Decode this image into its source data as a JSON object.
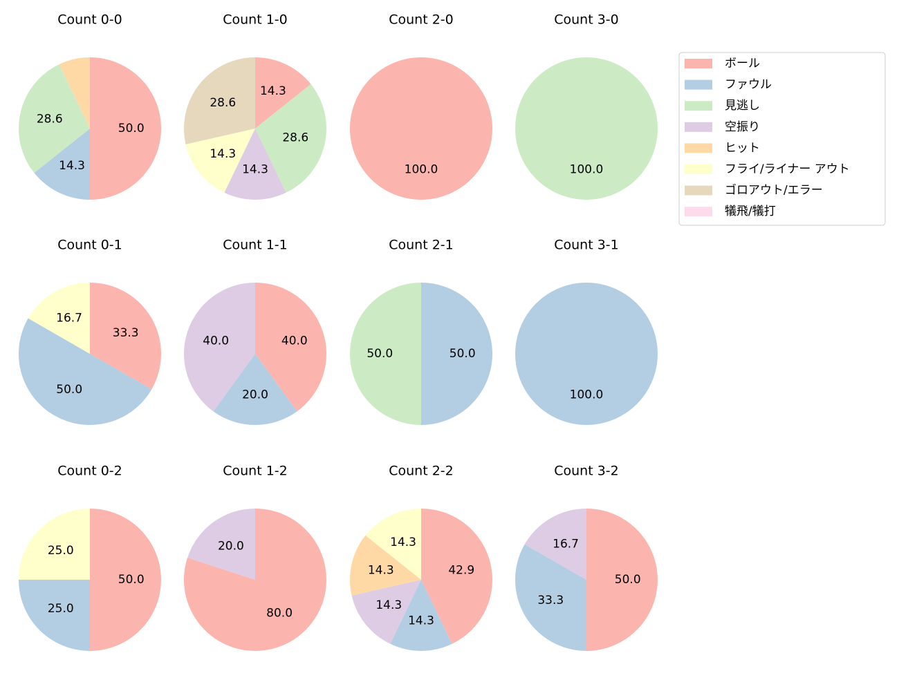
{
  "legend": {
    "position": "upper right",
    "entries": [
      {
        "name": "ボール",
        "color": "#fbb4ae"
      },
      {
        "name": "ファウル",
        "color": "#b3cde3"
      },
      {
        "name": "見逃し",
        "color": "#ccebc5"
      },
      {
        "name": "空振り",
        "color": "#decbe4"
      },
      {
        "name": "ヒット",
        "color": "#fed9a6"
      },
      {
        "name": "フライ/ライナー アウト",
        "color": "#ffffcc"
      },
      {
        "name": "ゴロアウト/エラー",
        "color": "#e5d8bd"
      },
      {
        "name": "犠飛/犠打",
        "color": "#fddaec"
      }
    ]
  },
  "chart_data": [
    {
      "type": "pie",
      "title": "Count 0-0",
      "categories": [
        "ボール",
        "ファウル",
        "見逃し",
        "ヒット"
      ],
      "values": [
        50,
        14.3,
        28.6,
        7.1
      ],
      "value_labels": [
        "50.0",
        "14.3",
        "28.6",
        null
      ]
    },
    {
      "type": "pie",
      "title": "Count 1-0",
      "categories": [
        "ボール",
        "見逃し",
        "空振り",
        "フライ/ライナー アウト",
        "ゴロアウト/エラー"
      ],
      "values": [
        14.3,
        28.6,
        14.3,
        14.3,
        28.6
      ],
      "value_labels": [
        "14.3",
        "28.6",
        "14.3",
        "14.3",
        "28.6"
      ]
    },
    {
      "type": "pie",
      "title": "Count 2-0",
      "categories": [
        "ボール"
      ],
      "values": [
        100
      ],
      "value_labels": [
        "100.0"
      ]
    },
    {
      "type": "pie",
      "title": "Count 3-0",
      "categories": [
        "見逃し"
      ],
      "values": [
        100
      ],
      "value_labels": [
        "100.0"
      ]
    },
    {
      "type": "pie",
      "title": "Count 0-1",
      "categories": [
        "ボール",
        "ファウル",
        "フライ/ライナー アウト"
      ],
      "values": [
        33.3,
        50,
        16.7
      ],
      "value_labels": [
        "33.3",
        "50.0",
        "16.7"
      ]
    },
    {
      "type": "pie",
      "title": "Count 1-1",
      "categories": [
        "ボール",
        "ファウル",
        "空振り"
      ],
      "values": [
        40,
        20,
        40
      ],
      "value_labels": [
        "40.0",
        "20.0",
        "40.0"
      ]
    },
    {
      "type": "pie",
      "title": "Count 2-1",
      "categories": [
        "ファウル",
        "見逃し"
      ],
      "values": [
        50,
        50
      ],
      "value_labels": [
        "50.0",
        "50.0"
      ]
    },
    {
      "type": "pie",
      "title": "Count 3-1",
      "categories": [
        "ファウル"
      ],
      "values": [
        100
      ],
      "value_labels": [
        "100.0"
      ]
    },
    {
      "type": "pie",
      "title": "Count 0-2",
      "categories": [
        "ボール",
        "ファウル",
        "フライ/ライナー アウト"
      ],
      "values": [
        50,
        25,
        25
      ],
      "value_labels": [
        "50.0",
        "25.0",
        "25.0"
      ]
    },
    {
      "type": "pie",
      "title": "Count 1-2",
      "categories": [
        "ボール",
        "空振り"
      ],
      "values": [
        80,
        20
      ],
      "value_labels": [
        "80.0",
        "20.0"
      ]
    },
    {
      "type": "pie",
      "title": "Count 2-2",
      "categories": [
        "ボール",
        "ファウル",
        "空振り",
        "ヒット",
        "フライ/ライナー アウト"
      ],
      "values": [
        42.9,
        14.3,
        14.3,
        14.3,
        14.3
      ],
      "value_labels": [
        "42.9",
        "14.3",
        "14.3",
        "14.3",
        "14.3"
      ]
    },
    {
      "type": "pie",
      "title": "Count 3-2",
      "categories": [
        "ボール",
        "ファウル",
        "空振り"
      ],
      "values": [
        50,
        33.3,
        16.7
      ],
      "value_labels": [
        "50.0",
        "33.3",
        "16.7"
      ]
    }
  ]
}
